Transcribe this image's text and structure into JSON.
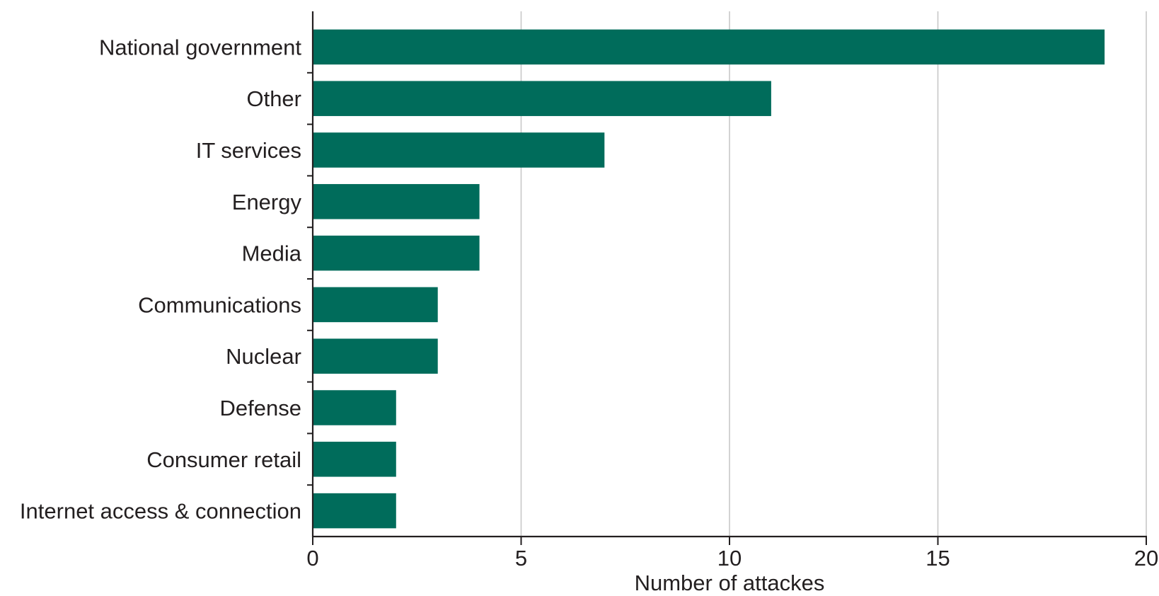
{
  "chart_data": {
    "type": "bar",
    "orientation": "horizontal",
    "title": "",
    "xlabel": "Number of attackes",
    "ylabel": "",
    "categories": [
      "National government",
      "Other",
      "IT services",
      "Energy",
      "Media",
      "Communications",
      "Nuclear",
      "Defense",
      "Consumer retail",
      "Internet access & connection"
    ],
    "values": [
      19,
      11,
      7,
      4,
      4,
      3,
      3,
      2,
      2,
      2
    ],
    "xlim": [
      0,
      20
    ],
    "xticks": [
      "0",
      "5",
      "10",
      "15",
      "20"
    ],
    "grid": "vertical",
    "legend": "none",
    "bar_color": "#006c5b",
    "grid_color": "#c8c8c8",
    "axis_color": "#231f20"
  }
}
